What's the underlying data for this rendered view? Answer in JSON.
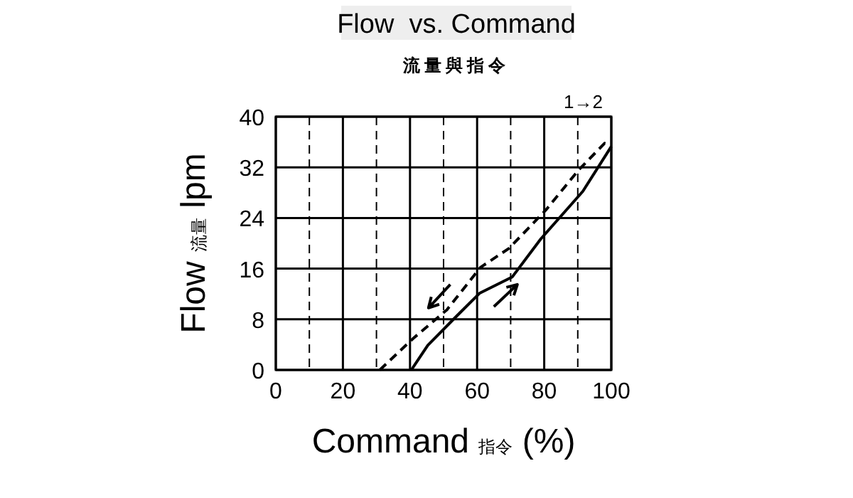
{
  "chart_data": {
    "type": "line",
    "title": "Flow  vs. Command",
    "subtitle": "流量與指令",
    "xlabel": "Command 指令 (%)",
    "ylabel": "Flow 流量 lpm",
    "annotations": [
      "1→2"
    ],
    "xlim": [
      0,
      100
    ],
    "xticks": [
      0,
      {
        "value": 10,
        "label": null
      },
      20,
      {
        "value": 30,
        "label": null
      },
      40,
      {
        "value": 50,
        "label": null
      },
      60,
      {
        "value": 70,
        "label": null
      },
      80,
      {
        "value": 90,
        "label": null
      },
      100
    ],
    "ylim": [
      0,
      40
    ],
    "yticks": [
      0,
      8,
      16,
      24,
      32,
      40
    ],
    "grid": true,
    "marker": "none",
    "series": [
      {
        "color": "#000000",
        "line_style": "solid",
        "x": [
          40.4,
          45.3,
          53.7,
          60.7,
          70.5,
          79,
          91.5,
          100
        ],
        "values": [
          0,
          3.9,
          8.4,
          12.1,
          14.7,
          20.7,
          28.2,
          35.3
        ]
      },
      {
        "color": "#000000",
        "line_style": "dashed",
        "x": [
          31,
          41,
          51,
          61,
          69.5,
          80.4,
          90.3,
          98,
          100
        ],
        "values": [
          0,
          5,
          9.5,
          16.2,
          19.2,
          25.2,
          31.6,
          35.8,
          35.3
        ]
      }
    ]
  }
}
